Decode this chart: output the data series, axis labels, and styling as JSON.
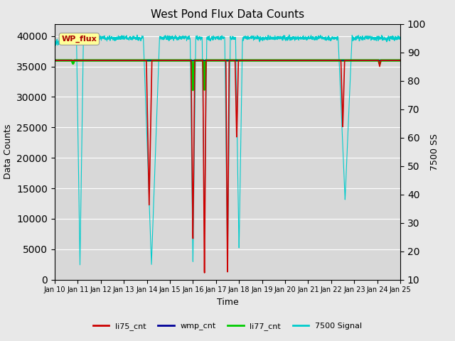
{
  "title": "West Pond Flux Data Counts",
  "xlabel": "Time",
  "ylabel_left": "Data Counts",
  "ylabel_right": "7500 SS",
  "xlim": [
    0,
    15
  ],
  "ylim_left": [
    0,
    42000
  ],
  "ylim_right": [
    10,
    100
  ],
  "yticks_left": [
    0,
    5000,
    10000,
    15000,
    20000,
    25000,
    30000,
    35000,
    40000
  ],
  "yticks_right": [
    10,
    20,
    30,
    40,
    50,
    60,
    70,
    80,
    90,
    100
  ],
  "xtick_labels": [
    "Jan 10",
    "Jan 11",
    "Jan 12",
    "Jan 13",
    "Jan 14",
    "Jan 15",
    "Jan 16",
    "Jan 17",
    "Jan 18",
    "Jan 19",
    "Jan 20",
    "Jan 21",
    "Jan 22",
    "Jan 23",
    "Jan 24",
    "Jan 25"
  ],
  "bg_color": "#e8e8e8",
  "plot_bg_color": "#d8d8d8",
  "legend_entries": [
    "li75_cnt",
    "wmp_cnt",
    "li77_cnt",
    "7500 Signal"
  ],
  "legend_colors": [
    "#cc0000",
    "#000099",
    "#00cc00",
    "#00cccc"
  ],
  "wp_flux_box_color": "#ffff99",
  "wp_flux_text_color": "#aa0000",
  "green_line_y": 36000,
  "figsize": [
    6.4,
    4.8
  ],
  "dpi": 100
}
